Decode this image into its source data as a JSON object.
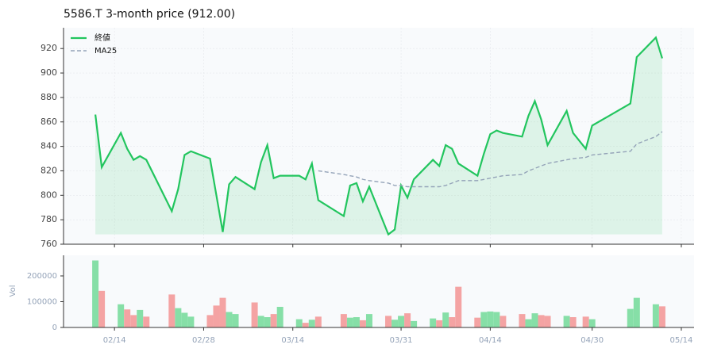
{
  "chart_data": {
    "type": "line",
    "title": "5586.T  3-month price (912.00)",
    "x": [
      "02/11",
      "02/12",
      "02/15",
      "02/16",
      "02/17",
      "02/18",
      "02/19",
      "02/23",
      "02/24",
      "02/25",
      "02/26",
      "03/01",
      "03/02",
      "03/03",
      "03/04",
      "03/05",
      "03/08",
      "03/09",
      "03/10",
      "03/11",
      "03/12",
      "03/15",
      "03/16",
      "03/17",
      "03/18",
      "03/22",
      "03/23",
      "03/24",
      "03/25",
      "03/26",
      "03/29",
      "03/30",
      "03/31",
      "04/01",
      "04/02",
      "04/05",
      "04/06",
      "04/07",
      "04/08",
      "04/09",
      "04/12",
      "04/13",
      "04/14",
      "04/15",
      "04/16",
      "04/19",
      "04/20",
      "04/21",
      "04/22",
      "04/23",
      "04/26",
      "04/27",
      "04/29",
      "04/30",
      "05/06",
      "05/07",
      "05/10",
      "05/11"
    ],
    "series": [
      {
        "name": "終値",
        "color": "#22c55e",
        "values": [
          866,
          823,
          851,
          838,
          829,
          832,
          829,
          787,
          805,
          833,
          836,
          830,
          800,
          770,
          809,
          815,
          805,
          827,
          841,
          814,
          816,
          816,
          813,
          826,
          796,
          783,
          808,
          810,
          795,
          807,
          768,
          772,
          808,
          798,
          813,
          829,
          824,
          841,
          838,
          826,
          816,
          834,
          850,
          853,
          851,
          848,
          865,
          877,
          862,
          841,
          869,
          851,
          838,
          857,
          875,
          913,
          929,
          912
        ]
      },
      {
        "name": "MA25",
        "color": "#94a3b8",
        "values": [
          null,
          null,
          null,
          null,
          null,
          null,
          null,
          null,
          null,
          null,
          null,
          null,
          null,
          null,
          null,
          null,
          null,
          null,
          null,
          null,
          null,
          null,
          null,
          null,
          820,
          817,
          816,
          815,
          813,
          812,
          810,
          808,
          808,
          807,
          807,
          807,
          807,
          808,
          810,
          812,
          812,
          813,
          814,
          815,
          816,
          817,
          820,
          822,
          824,
          826,
          829,
          830,
          831,
          833,
          836,
          842,
          848,
          852
        ]
      }
    ],
    "xlim": [
      "02/06",
      "05/16"
    ],
    "xticks": [
      "02/14",
      "02/28",
      "03/14",
      "03/31",
      "04/14",
      "04/30",
      "05/14"
    ],
    "ylim": [
      760,
      937
    ],
    "yticks": [
      760,
      780,
      800,
      820,
      840,
      860,
      880,
      900,
      920
    ],
    "grid": true,
    "legend": "upper left",
    "volume": {
      "ylabel": "Vol",
      "up_color": "#86dfa7",
      "down_color": "#f4a3a3",
      "values": [
        260000,
        142000,
        90000,
        70000,
        48000,
        68000,
        42000,
        128000,
        75000,
        57000,
        42000,
        48000,
        85000,
        115000,
        60000,
        52000,
        97000,
        45000,
        40000,
        52000,
        80000,
        32000,
        18000,
        30000,
        42000,
        52000,
        38000,
        40000,
        28000,
        52000,
        45000,
        30000,
        45000,
        55000,
        25000,
        35000,
        28000,
        58000,
        40000,
        158000,
        38000,
        60000,
        62000,
        60000,
        45000,
        52000,
        32000,
        55000,
        48000,
        45000,
        45000,
        40000,
        42000,
        32000,
        72000,
        115000,
        90000,
        82000
      ],
      "ylim": [
        0,
        280000
      ],
      "yticks": [
        0,
        100000,
        200000
      ]
    }
  }
}
